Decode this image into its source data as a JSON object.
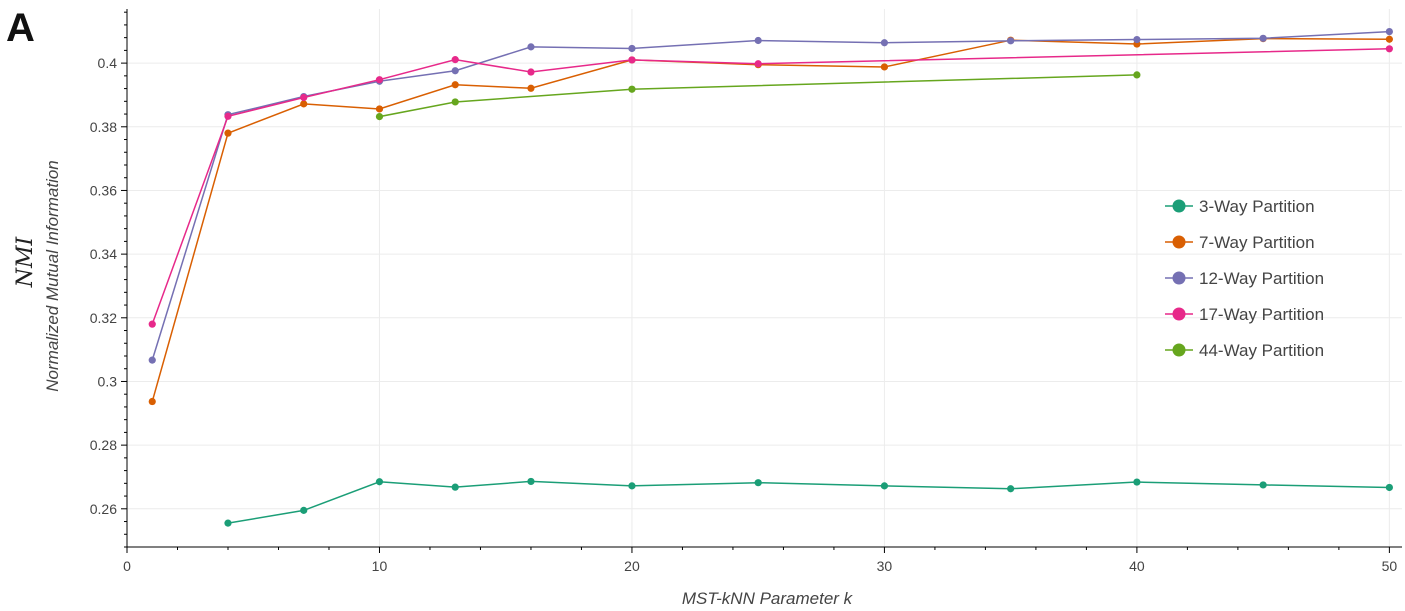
{
  "panel_label": "A",
  "chart_data": {
    "type": "line",
    "title": "",
    "xlabel": "MST-kNN Parameter k",
    "ylabel": "Normalized Mutual Information",
    "ylabel_symbol": "NMI",
    "xlim": [
      0,
      50.5
    ],
    "ylim": [
      0.248,
      0.417
    ],
    "xticks": [
      0,
      10,
      20,
      30,
      40,
      50
    ],
    "yticks": [
      0.26,
      0.28,
      0.3,
      0.32,
      0.34,
      0.36,
      0.38,
      0.4
    ],
    "ytick_labels": [
      "0.26",
      "0.28",
      "0.3",
      "0.32",
      "0.34",
      "0.36",
      "0.38",
      "0.4"
    ],
    "grid": true,
    "legend_position": "right",
    "series": [
      {
        "name": "3-Way Partition",
        "color": "#1b9e77",
        "x": [
          4,
          7,
          10,
          13,
          16,
          20,
          25,
          30,
          35,
          40,
          45,
          50
        ],
        "y": [
          0.2555,
          0.2595,
          0.2685,
          0.2668,
          0.2686,
          0.2672,
          0.2682,
          0.2672,
          0.2663,
          0.2684,
          0.2675,
          0.2667
        ]
      },
      {
        "name": "7-Way Partition",
        "color": "#d95f02",
        "x": [
          1,
          4,
          7,
          10,
          13,
          16,
          20,
          25,
          30,
          35,
          40,
          45,
          50
        ],
        "y": [
          0.2937,
          0.378,
          0.3872,
          0.3856,
          0.3932,
          0.3921,
          0.401,
          0.3995,
          0.3988,
          0.4072,
          0.406,
          0.4077,
          0.4075
        ]
      },
      {
        "name": "12-Way Partition",
        "color": "#7570b3",
        "x": [
          1,
          4,
          7,
          10,
          13,
          16,
          20,
          25,
          30,
          35,
          40,
          45,
          50
        ],
        "y": [
          0.3067,
          0.3838,
          0.3895,
          0.3943,
          0.3976,
          0.4051,
          0.4046,
          0.4071,
          0.4064,
          0.407,
          0.4074,
          0.4078,
          0.4099
        ]
      },
      {
        "name": "17-Way Partition",
        "color": "#e7298a",
        "x": [
          1,
          4,
          7,
          10,
          13,
          16,
          20,
          25,
          50
        ],
        "y": [
          0.318,
          0.3833,
          0.3892,
          0.3948,
          0.4011,
          0.3972,
          0.401,
          0.3998,
          0.4045
        ]
      },
      {
        "name": "44-Way Partition",
        "color": "#66a61e",
        "x": [
          10,
          13,
          20,
          40
        ],
        "y": [
          0.3832,
          0.3878,
          0.3918,
          0.3963
        ]
      }
    ]
  }
}
